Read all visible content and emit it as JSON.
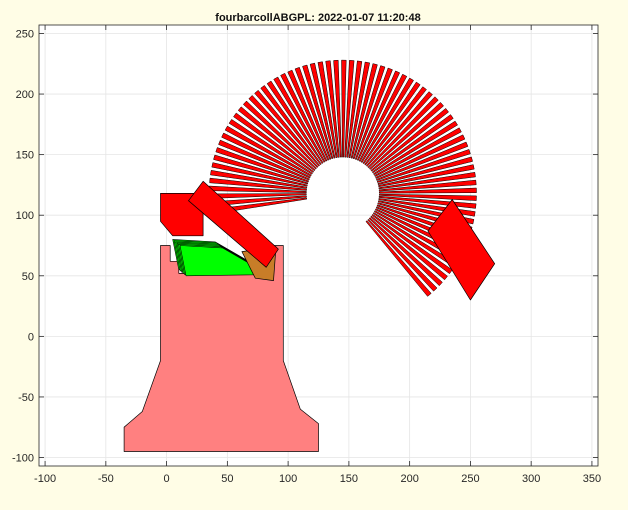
{
  "chart_data": {
    "type": "scatter",
    "title": "fourbarcollABGPL: 2022-01-07 11:20:48",
    "xlabel": "",
    "ylabel": "",
    "xlim": [
      -100,
      350
    ],
    "ylim": [
      -100,
      250
    ],
    "x_ticks": [
      -100,
      -50,
      0,
      50,
      100,
      150,
      200,
      250,
      300,
      350
    ],
    "y_ticks": [
      -100,
      -50,
      0,
      50,
      100,
      150,
      200,
      250
    ],
    "x_tick_labels": [
      "-100",
      "-50",
      "0",
      "50",
      "100",
      "150",
      "200",
      "250",
      "300",
      "350"
    ],
    "y_tick_labels": [
      "-100",
      "-50",
      "0",
      "50",
      "100",
      "150",
      "200",
      "250"
    ],
    "grid": true,
    "colors": {
      "background": "#fffde6",
      "axes_face": "#ffffff",
      "base": "#ff8080",
      "coupler": "#ff0000",
      "crank": "#00ff00",
      "rocker": "#c87d28",
      "edge": "#000000",
      "grid": "#e5e5e5"
    },
    "series": [
      {
        "type": "polygon",
        "points": [
          [
            -5,
            75
          ],
          [
            3,
            75
          ],
          [
            3,
            62
          ],
          [
            10,
            62
          ],
          [
            10,
            52
          ],
          [
            80,
            52
          ],
          [
            80,
            62
          ],
          [
            87,
            62
          ],
          [
            87,
            75
          ],
          [
            96,
            75
          ],
          [
            96,
            -20
          ],
          [
            110,
            -60
          ],
          [
            125,
            -72
          ],
          [
            125,
            -95
          ],
          [
            -35,
            -95
          ],
          [
            -35,
            -75
          ],
          [
            -20,
            -62
          ],
          [
            -5,
            -20
          ]
        ]
      },
      {
        "type": "polygon",
        "points": [
          [
            215,
            87
          ],
          [
            250,
            30
          ],
          [
            270,
            60
          ],
          [
            235,
            113
          ]
        ]
      },
      {
        "type": "polygon",
        "points": [
          [
            -5,
            118
          ],
          [
            30,
            118
          ],
          [
            30,
            83
          ],
          [
            5,
            83
          ],
          [
            -5,
            95
          ]
        ]
      },
      {
        "type": "polygon",
        "points": [
          [
            30,
            128
          ],
          [
            92,
            72
          ],
          [
            82,
            57
          ],
          [
            18,
            112
          ]
        ]
      },
      {
        "type": "polygon",
        "points": [
          [
            5,
            80
          ],
          [
            40,
            78
          ],
          [
            78,
            56
          ],
          [
            10,
            55
          ]
        ]
      },
      {
        "type": "polygon",
        "points": [
          [
            62,
            70
          ],
          [
            90,
            74
          ],
          [
            88,
            46
          ],
          [
            73,
            48
          ]
        ]
      }
    ]
  }
}
